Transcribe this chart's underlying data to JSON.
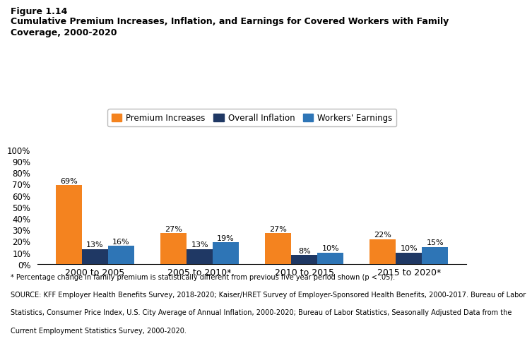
{
  "title_line1": "Figure 1.14",
  "title_line2": "Cumulative Premium Increases, Inflation, and Earnings for Covered Workers with Family",
  "title_line3": "Coverage, 2000-2020",
  "categories": [
    "2000 to 2005",
    "2005 to 2010*",
    "2010 to 2015",
    "2015 to 2020*"
  ],
  "premium_increases": [
    69,
    27,
    27,
    22
  ],
  "overall_inflation": [
    13,
    13,
    8,
    10
  ],
  "workers_earnings": [
    16,
    19,
    10,
    15
  ],
  "bar_colors": {
    "premium": "#F4831F",
    "inflation": "#1F3864",
    "earnings": "#2E75B6"
  },
  "legend_labels": [
    "Premium Increases",
    "Overall Inflation",
    "Workers' Earnings"
  ],
  "ylim": [
    0,
    110
  ],
  "yticks": [
    0,
    10,
    20,
    30,
    40,
    50,
    60,
    70,
    80,
    90,
    100
  ],
  "ytick_labels": [
    "0%",
    "10%",
    "20%",
    "30%",
    "40%",
    "50%",
    "60%",
    "70%",
    "80%",
    "90%",
    "100%"
  ],
  "footnote_line1": "* Percentage change in family premium is statistically different from previous five year period shown (p < .05).",
  "footnote_line2": "SOURCE: KFF Employer Health Benefits Survey, 2018-2020; Kaiser/HRET Survey of Employer-Sponsored Health Benefits, 2000-2017. Bureau of Labor",
  "footnote_line3": "Statistics, Consumer Price Index, U.S. City Average of Annual Inflation, 2000-2020; Bureau of Labor Statistics, Seasonally Adjusted Data from the",
  "footnote_line4": "Current Employment Statistics Survey, 2000-2020.",
  "background_color": "#ffffff",
  "bar_width": 0.25
}
